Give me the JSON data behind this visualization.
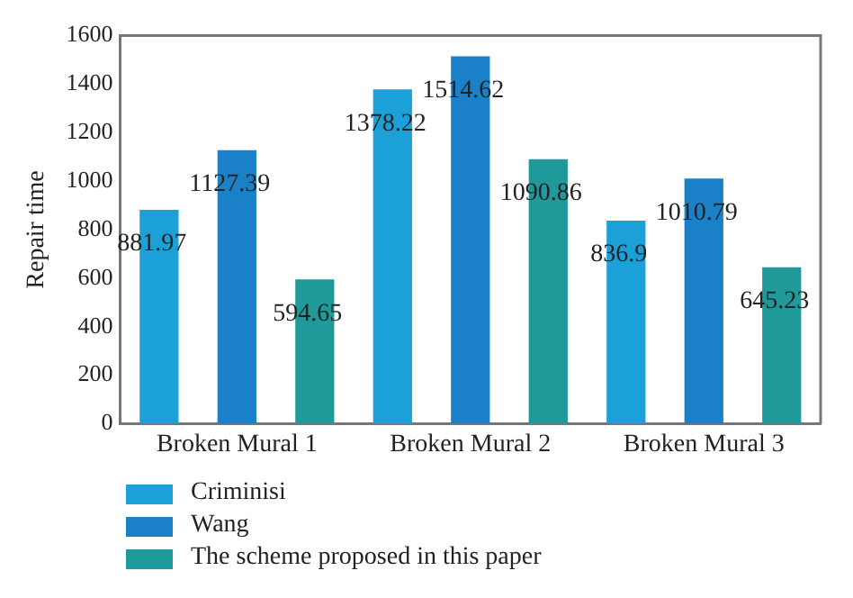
{
  "chart_data": {
    "type": "bar",
    "ylabel": "Repair time",
    "categories": [
      "Broken Mural 1",
      "Broken Mural 2",
      "Broken Mural 3"
    ],
    "series": [
      {
        "name": "Criminisi",
        "color": "#1ba1d8",
        "values": [
          881.97,
          1378.22,
          836.9
        ]
      },
      {
        "name": "Wang",
        "color": "#1a80c8",
        "values": [
          1127.39,
          1514.62,
          1010.79
        ]
      },
      {
        "name": "The scheme proposed in this paper",
        "color": "#20999a",
        "values": [
          594.65,
          1090.86,
          645.23
        ]
      }
    ],
    "ylim": [
      0,
      1600
    ],
    "yticks": [
      0,
      200,
      400,
      600,
      800,
      1000,
      1200,
      1400,
      1600
    ],
    "grid": false,
    "legend": "bottom",
    "data_labels": true
  }
}
